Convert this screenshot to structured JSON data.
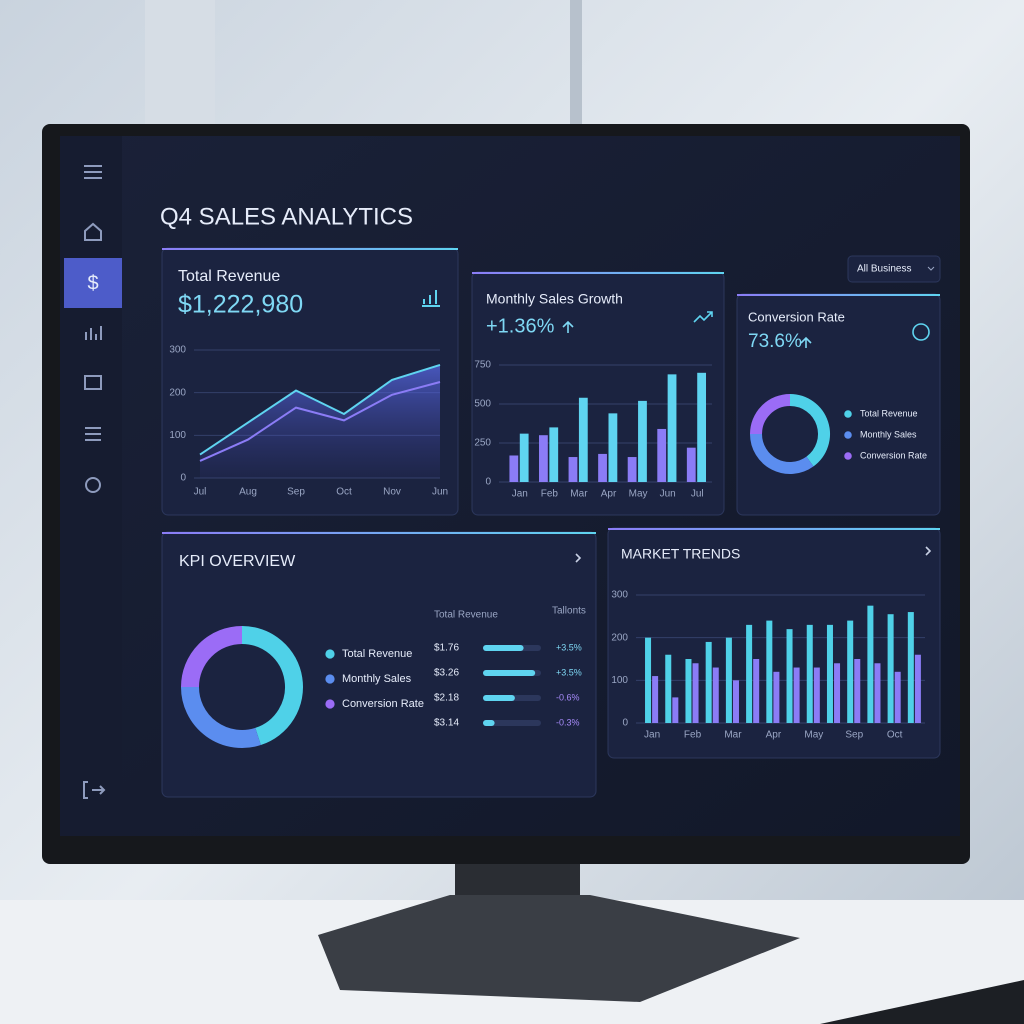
{
  "title": "Q4 SALES ANALYTICS",
  "filter": "All Business",
  "nav_active_icon": "$",
  "chart_data": [
    {
      "type": "line",
      "title": "Total Revenue",
      "headline": "$1,222,980",
      "categories": [
        "Jul",
        "Aug",
        "Sep",
        "Oct",
        "Nov",
        "Jun"
      ],
      "series": [
        {
          "color": "#5fd4f0",
          "values": [
            55,
            130,
            205,
            150,
            230,
            265
          ]
        },
        {
          "color": "#8b7cf6",
          "values": [
            40,
            90,
            165,
            135,
            195,
            225
          ]
        }
      ],
      "ylim": [
        0,
        300
      ],
      "yticks": [
        0,
        100,
        200,
        300
      ],
      "grid": true
    },
    {
      "type": "bar",
      "title": "Monthly Sales Growth",
      "headline": "+1.36%",
      "categories": [
        "Jan",
        "Feb",
        "Mar",
        "Apr",
        "May",
        "Jun",
        "Jul"
      ],
      "series": [
        {
          "color": "#8b7cf6",
          "values": [
            170,
            300,
            160,
            180,
            160,
            340,
            220
          ]
        },
        {
          "color": "#5fd4f0",
          "values": [
            310,
            350,
            540,
            440,
            520,
            690,
            700
          ]
        }
      ],
      "ylim": [
        0,
        750
      ],
      "yticks": [
        0,
        250,
        500,
        750
      ],
      "grid": true
    },
    {
      "type": "donut",
      "title": "Conversion Rate",
      "headline": "73.6%",
      "categories": [
        "Total Revenue",
        "Monthly Sales",
        "Conversion Rate"
      ],
      "values": [
        40,
        35,
        25
      ],
      "colors": [
        "#4fd1e8",
        "#5b8def",
        "#9b6cf6"
      ]
    },
    {
      "type": "donut",
      "title": "KPI OVERVIEW",
      "categories": [
        "Total Revenue",
        "Monthly Sales",
        "Conversion Rate"
      ],
      "values": [
        45,
        30,
        25
      ],
      "colors": [
        "#4fd1e8",
        "#5b8def",
        "#9b6cf6"
      ]
    },
    {
      "type": "bar",
      "title": "MARKET TRENDS",
      "categories": [
        "Jan",
        null,
        "Feb",
        null,
        "Mar",
        null,
        "Apr",
        null,
        "May",
        null,
        "Sep",
        null,
        "Oct",
        null
      ],
      "series": [
        {
          "color": "#4fd1e8",
          "values": [
            200,
            160,
            150,
            190,
            200,
            230,
            240,
            220,
            230,
            230,
            240,
            275,
            255,
            260
          ]
        },
        {
          "color": "#8b7cf6",
          "values": [
            110,
            60,
            140,
            130,
            100,
            150,
            120,
            130,
            130,
            140,
            150,
            140,
            120,
            160
          ]
        }
      ],
      "ylim": [
        0,
        300
      ],
      "yticks": [
        0,
        100,
        200,
        300
      ],
      "grid": true
    }
  ],
  "kpi_table": {
    "headers": [
      "Total Revenue",
      "Tallonts"
    ],
    "rows": [
      {
        "value": "$1.76",
        "progress": 70,
        "change": "+3.5%"
      },
      {
        "value": "$3.26",
        "progress": 90,
        "change": "+3.5%"
      },
      {
        "value": "$2.18",
        "progress": 55,
        "change": "-0.6%"
      },
      {
        "value": "$3.14",
        "progress": 20,
        "change": "-0.3%"
      }
    ]
  }
}
